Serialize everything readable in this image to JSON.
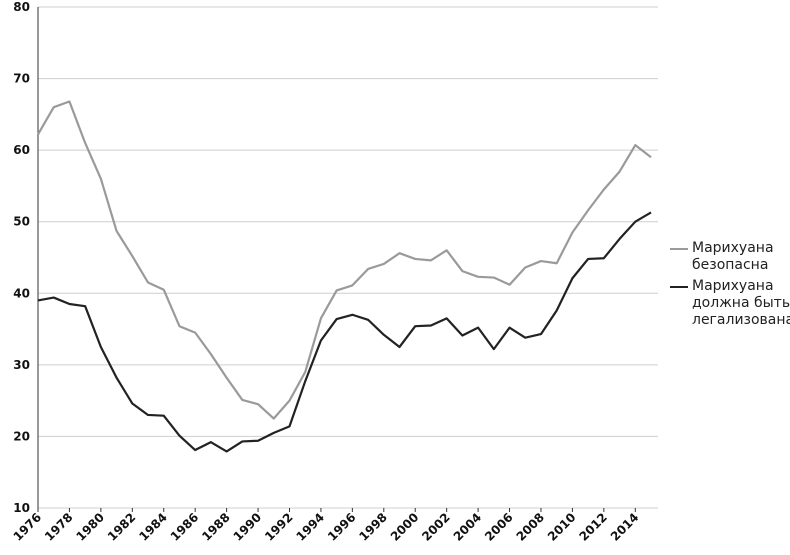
{
  "chart_data": {
    "type": "line",
    "x": [
      1976,
      1977,
      1978,
      1979,
      1980,
      1981,
      1982,
      1983,
      1984,
      1985,
      1986,
      1987,
      1988,
      1989,
      1990,
      1991,
      1992,
      1993,
      1994,
      1995,
      1996,
      1997,
      1998,
      1999,
      2000,
      2001,
      2002,
      2003,
      2004,
      2005,
      2006,
      2007,
      2008,
      2009,
      2010,
      2011,
      2012,
      2013,
      2014,
      2015
    ],
    "series": [
      {
        "name": "Марихуана безопасна",
        "color": "#9a9a9a",
        "values": [
          62.2,
          66,
          66.8,
          61,
          56,
          48.7,
          45.2,
          41.5,
          40.5,
          35.4,
          34.5,
          31.5,
          28.2,
          25.1,
          24.5,
          22.5,
          25,
          29,
          36.5,
          40.4,
          41.1,
          43.4,
          44.1,
          45.6,
          44.8,
          44.6,
          46,
          43.1,
          42.3,
          42.2,
          41.2,
          43.6,
          44.5,
          44.2,
          48.5,
          51.6,
          54.5,
          57,
          60.7,
          59
        ]
      },
      {
        "name": "Марихуана должна быть легализована",
        "color": "#222222",
        "values": [
          39,
          39.4,
          38.5,
          38.2,
          32.5,
          28.2,
          24.6,
          23,
          22.9,
          20.1,
          18.1,
          19.2,
          17.9,
          19.3,
          19.4,
          20.5,
          21.4,
          27.7,
          33.4,
          36.4,
          37,
          36.3,
          34.2,
          32.5,
          35.4,
          35.5,
          36.5,
          34.1,
          35.2,
          32.2,
          35.2,
          33.8,
          34.3,
          37.6,
          42.1,
          44.8,
          44.9,
          47.6,
          50,
          51.3
        ]
      }
    ],
    "xlim": [
      1976,
      2015
    ],
    "xticks": [
      1976,
      1978,
      1980,
      1982,
      1984,
      1986,
      1988,
      1990,
      1992,
      1994,
      1996,
      1998,
      2000,
      2002,
      2004,
      2006,
      2008,
      2010,
      2012,
      2014
    ],
    "ylim": [
      10,
      80
    ],
    "yticks": [
      10,
      20,
      30,
      40,
      50,
      60,
      70,
      80
    ],
    "grid": true
  }
}
